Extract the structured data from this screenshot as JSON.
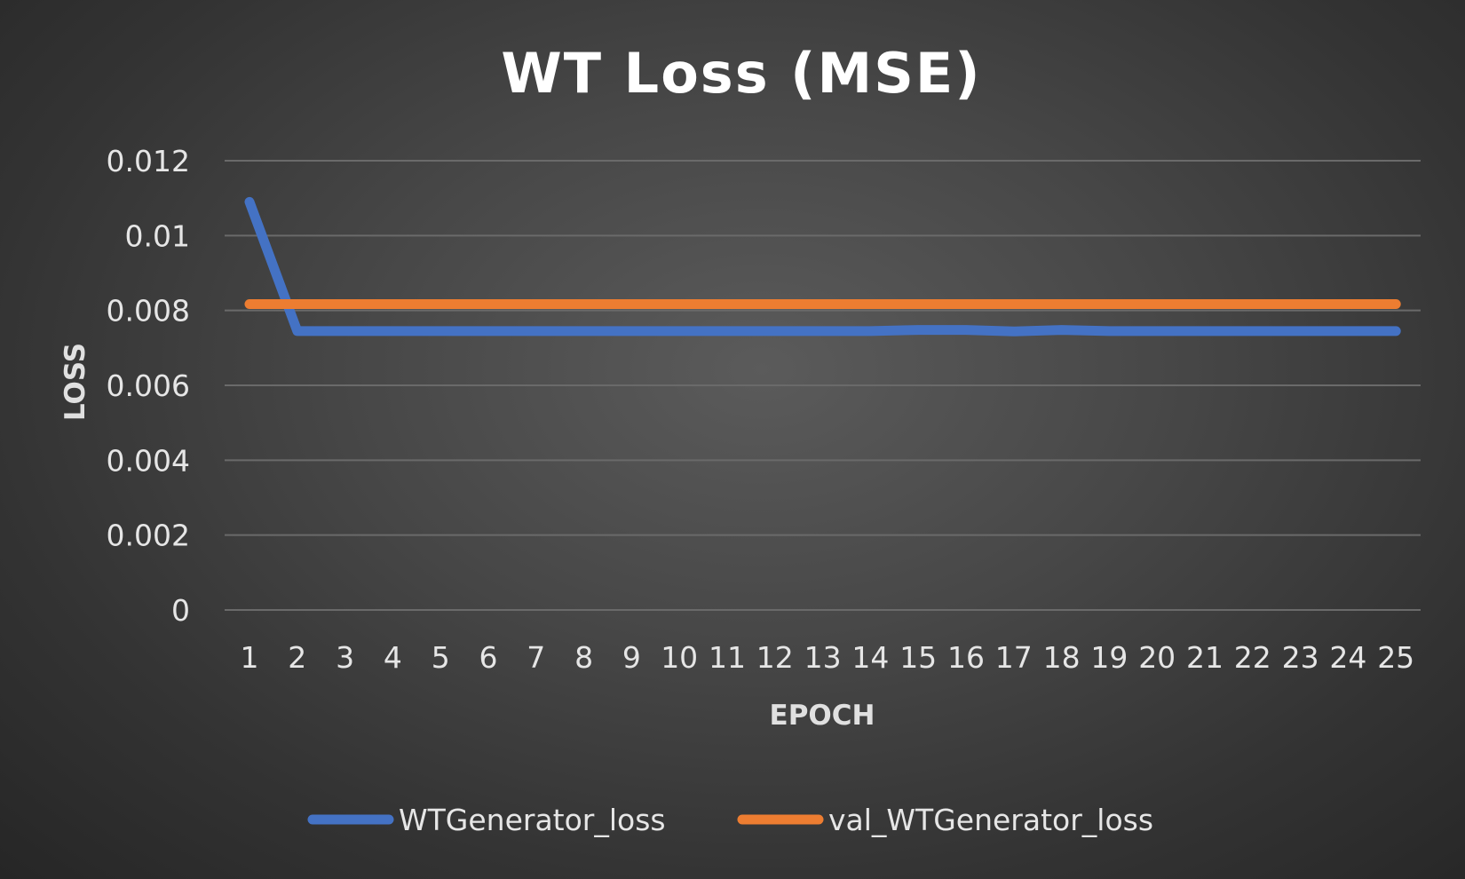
{
  "chart_data": {
    "type": "line",
    "title": "WT Loss (MSE)",
    "xlabel": "EPOCH",
    "ylabel": "LOSS",
    "categories": [
      "1",
      "2",
      "3",
      "4",
      "5",
      "6",
      "7",
      "8",
      "9",
      "10",
      "11",
      "12",
      "13",
      "14",
      "15",
      "16",
      "17",
      "18",
      "19",
      "20",
      "21",
      "22",
      "23",
      "24",
      "25"
    ],
    "y_ticks": [
      "0.012",
      "0.01",
      "0.008",
      "0.006",
      "0.004",
      "0.002",
      "0"
    ],
    "ylim": [
      0,
      0.012
    ],
    "grid": true,
    "legend_position": "bottom",
    "series": [
      {
        "name": "WTGenerator_loss",
        "color": "#4472C4",
        "values": [
          0.0109,
          0.00745,
          0.00745,
          0.00745,
          0.00745,
          0.00745,
          0.00745,
          0.00745,
          0.00745,
          0.00745,
          0.00745,
          0.00745,
          0.00745,
          0.00745,
          0.00748,
          0.00748,
          0.00744,
          0.00748,
          0.00745,
          0.00745,
          0.00745,
          0.00745,
          0.00745,
          0.00745,
          0.00745
        ]
      },
      {
        "name": "val_WTGenerator_loss",
        "color": "#ED7D31",
        "values": [
          0.00817,
          0.00817,
          0.00817,
          0.00817,
          0.00817,
          0.00817,
          0.00817,
          0.00817,
          0.00817,
          0.00817,
          0.00817,
          0.00817,
          0.00817,
          0.00817,
          0.00817,
          0.00817,
          0.00817,
          0.00817,
          0.00817,
          0.00817,
          0.00817,
          0.00817,
          0.00817,
          0.00817,
          0.00817
        ]
      }
    ]
  }
}
